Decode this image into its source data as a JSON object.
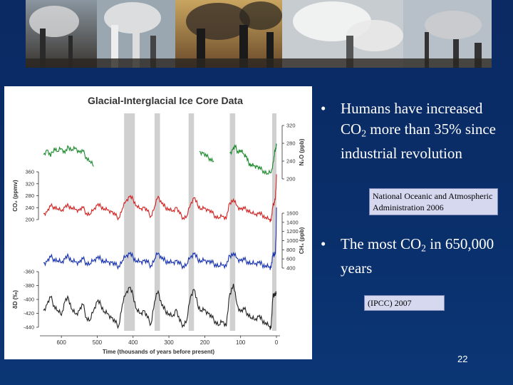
{
  "bullets": [
    {
      "parts": [
        "Humans have increased CO",
        "2",
        " more than 35% since industrial revolution"
      ]
    },
    {
      "parts": [
        "The most CO",
        "2",
        " in 650,000 years"
      ]
    }
  ],
  "citations": [
    "National Oceanic and Atmospheric Administration 2006",
    "(IPCC) 2007"
  ],
  "slide_number": "22",
  "banner": {
    "description_icon": "industrial-smokestacks-photo-strip"
  },
  "chart_data": {
    "type": "line",
    "title": "Glacial-Interglacial Ice Core Data",
    "xlabel": "Time (thousands of years before present)",
    "xlim": [
      650,
      0
    ],
    "x_ticks": [
      "600",
      "500",
      "400",
      "300",
      "200",
      "100",
      "0"
    ],
    "interglacial_bands_kyr": [
      [
        425,
        395
      ],
      [
        340,
        325
      ],
      [
        245,
        230
      ],
      [
        130,
        115
      ],
      [
        12,
        0
      ]
    ],
    "colors": {
      "n2o": "#1a8a2a",
      "co2": "#d42020",
      "ch4": "#1530b0",
      "dD": "#222222",
      "band": "#c8c8c8"
    },
    "series": [
      {
        "key": "n2o",
        "ylabel": "N₂O (ppb)",
        "axis": "right",
        "ylim": [
          200,
          320
        ],
        "ticks": [
          "320",
          "280",
          "240",
          "200"
        ],
        "segments": [
          [
            [
              650,
              255
            ],
            [
              640,
              265
            ],
            [
              630,
              250
            ],
            [
              620,
              270
            ],
            [
              610,
              262
            ],
            [
              600,
              268
            ],
            [
              590,
              258
            ],
            [
              580,
              272
            ],
            [
              570,
              266
            ],
            [
              560,
              270
            ],
            [
              550,
              260
            ],
            [
              540,
              262
            ],
            [
              530,
              248
            ],
            [
              520,
              240
            ],
            [
              510,
              228
            ]
          ],
          [
            [
              215,
              262
            ],
            [
              205,
              258
            ],
            [
              195,
              250
            ],
            [
              185,
              246
            ],
            [
              175,
              240
            ]
          ],
          [
            [
              130,
              258
            ],
            [
              122,
              266
            ],
            [
              115,
              272
            ],
            [
              108,
              262
            ],
            [
              100,
              264
            ],
            [
              92,
              256
            ],
            [
              85,
              250
            ],
            [
              78,
              236
            ],
            [
              70,
              232
            ],
            [
              62,
              230
            ],
            [
              55,
              228
            ],
            [
              45,
              222
            ],
            [
              35,
              218
            ],
            [
              25,
              212
            ],
            [
              15,
              214
            ],
            [
              8,
              240
            ],
            [
              4,
              265
            ],
            [
              1,
              272
            ],
            [
              0,
              278
            ]
          ]
        ]
      },
      {
        "key": "co2",
        "ylabel": "CO₂ (ppmv)",
        "axis": "left",
        "ylim": [
          180,
          380
        ],
        "ticks": [
          "360",
          "320",
          "280",
          "240",
          "200"
        ],
        "values": [
          [
            650,
            212
          ],
          [
            640,
            220
          ],
          [
            630,
            242
          ],
          [
            620,
            240
          ],
          [
            610,
            232
          ],
          [
            600,
            222
          ],
          [
            590,
            238
          ],
          [
            580,
            244
          ],
          [
            570,
            236
          ],
          [
            560,
            230
          ],
          [
            550,
            226
          ],
          [
            540,
            236
          ],
          [
            530,
            214
          ],
          [
            520,
            210
          ],
          [
            510,
            228
          ],
          [
            500,
            246
          ],
          [
            490,
            242
          ],
          [
            480,
            232
          ],
          [
            470,
            228
          ],
          [
            460,
            220
          ],
          [
            450,
            206
          ],
          [
            440,
            195
          ],
          [
            430,
            232
          ],
          [
            420,
            262
          ],
          [
            410,
            280
          ],
          [
            400,
            270
          ],
          [
            390,
            244
          ],
          [
            380,
            232
          ],
          [
            370,
            238
          ],
          [
            360,
            222
          ],
          [
            350,
            202
          ],
          [
            340,
            240
          ],
          [
            330,
            282
          ],
          [
            320,
            252
          ],
          [
            310,
            238
          ],
          [
            300,
            232
          ],
          [
            290,
            222
          ],
          [
            280,
            238
          ],
          [
            270,
            212
          ],
          [
            260,
            196
          ],
          [
            250,
            202
          ],
          [
            240,
            248
          ],
          [
            230,
            276
          ],
          [
            220,
            248
          ],
          [
            210,
            232
          ],
          [
            200,
            236
          ],
          [
            190,
            226
          ],
          [
            180,
            216
          ],
          [
            170,
            202
          ],
          [
            160,
            196
          ],
          [
            150,
            202
          ],
          [
            140,
            192
          ],
          [
            130,
            256
          ],
          [
            120,
            270
          ],
          [
            110,
            244
          ],
          [
            100,
            230
          ],
          [
            90,
            232
          ],
          [
            80,
            228
          ],
          [
            70,
            216
          ],
          [
            60,
            208
          ],
          [
            50,
            212
          ],
          [
            40,
            208
          ],
          [
            30,
            198
          ],
          [
            20,
            190
          ],
          [
            15,
            186
          ],
          [
            10,
            240
          ],
          [
            6,
            260
          ],
          [
            3,
            275
          ],
          [
            1,
            320
          ],
          [
            0,
            370
          ]
        ]
      },
      {
        "key": "ch4",
        "ylabel": "CH₄ (ppb)",
        "axis": "right",
        "ylim": [
          350,
          1750
        ],
        "ticks": [
          "1600",
          "1400",
          "1200",
          "1000",
          "800",
          "600",
          "400"
        ],
        "values": [
          [
            650,
            470
          ],
          [
            640,
            500
          ],
          [
            630,
            600
          ],
          [
            620,
            560
          ],
          [
            610,
            520
          ],
          [
            600,
            470
          ],
          [
            590,
            560
          ],
          [
            580,
            620
          ],
          [
            570,
            520
          ],
          [
            560,
            500
          ],
          [
            550,
            480
          ],
          [
            540,
            560
          ],
          [
            530,
            470
          ],
          [
            520,
            450
          ],
          [
            510,
            520
          ],
          [
            500,
            580
          ],
          [
            490,
            560
          ],
          [
            480,
            510
          ],
          [
            470,
            500
          ],
          [
            460,
            480
          ],
          [
            450,
            420
          ],
          [
            440,
            400
          ],
          [
            430,
            520
          ],
          [
            420,
            620
          ],
          [
            410,
            680
          ],
          [
            400,
            600
          ],
          [
            390,
            520
          ],
          [
            380,
            500
          ],
          [
            370,
            520
          ],
          [
            360,
            480
          ],
          [
            350,
            410
          ],
          [
            340,
            560
          ],
          [
            330,
            700
          ],
          [
            320,
            560
          ],
          [
            310,
            520
          ],
          [
            300,
            500
          ],
          [
            290,
            480
          ],
          [
            280,
            520
          ],
          [
            270,
            440
          ],
          [
            260,
            400
          ],
          [
            250,
            440
          ],
          [
            240,
            600
          ],
          [
            230,
            680
          ],
          [
            220,
            560
          ],
          [
            210,
            520
          ],
          [
            200,
            540
          ],
          [
            190,
            500
          ],
          [
            180,
            470
          ],
          [
            170,
            440
          ],
          [
            160,
            400
          ],
          [
            150,
            420
          ],
          [
            140,
            390
          ],
          [
            130,
            640
          ],
          [
            120,
            700
          ],
          [
            110,
            580
          ],
          [
            100,
            520
          ],
          [
            90,
            540
          ],
          [
            80,
            500
          ],
          [
            70,
            460
          ],
          [
            60,
            440
          ],
          [
            50,
            470
          ],
          [
            40,
            430
          ],
          [
            30,
            410
          ],
          [
            20,
            380
          ],
          [
            15,
            370
          ],
          [
            10,
            640
          ],
          [
            6,
            680
          ],
          [
            3,
            700
          ],
          [
            1,
            1100
          ],
          [
            0,
            1750
          ]
        ]
      },
      {
        "key": "dD",
        "ylabel": "δD (‰)",
        "axis": "left",
        "ylim": [
          -450,
          -350
        ],
        "ticks": [
          "-360",
          "-380",
          "-400",
          "-420",
          "-440"
        ],
        "values": [
          [
            650,
            -420
          ],
          [
            640,
            -410
          ],
          [
            630,
            -398
          ],
          [
            620,
            -412
          ],
          [
            610,
            -420
          ],
          [
            600,
            -428
          ],
          [
            590,
            -405
          ],
          [
            580,
            -400
          ],
          [
            570,
            -418
          ],
          [
            560,
            -426
          ],
          [
            550,
            -420
          ],
          [
            540,
            -410
          ],
          [
            530,
            -432
          ],
          [
            520,
            -436
          ],
          [
            510,
            -420
          ],
          [
            500,
            -405
          ],
          [
            490,
            -410
          ],
          [
            480,
            -422
          ],
          [
            470,
            -425
          ],
          [
            460,
            -432
          ],
          [
            450,
            -440
          ],
          [
            440,
            -445
          ],
          [
            430,
            -410
          ],
          [
            420,
            -392
          ],
          [
            410,
            -382
          ],
          [
            400,
            -395
          ],
          [
            390,
            -418
          ],
          [
            380,
            -425
          ],
          [
            370,
            -420
          ],
          [
            360,
            -432
          ],
          [
            350,
            -442
          ],
          [
            340,
            -405
          ],
          [
            330,
            -388
          ],
          [
            320,
            -412
          ],
          [
            310,
            -420
          ],
          [
            300,
            -425
          ],
          [
            290,
            -430
          ],
          [
            280,
            -418
          ],
          [
            270,
            -438
          ],
          [
            260,
            -444
          ],
          [
            250,
            -436
          ],
          [
            240,
            -398
          ],
          [
            230,
            -385
          ],
          [
            220,
            -410
          ],
          [
            210,
            -420
          ],
          [
            200,
            -418
          ],
          [
            190,
            -425
          ],
          [
            180,
            -432
          ],
          [
            170,
            -438
          ],
          [
            160,
            -444
          ],
          [
            150,
            -438
          ],
          [
            140,
            -446
          ],
          [
            130,
            -392
          ],
          [
            120,
            -376
          ],
          [
            110,
            -410
          ],
          [
            100,
            -422
          ],
          [
            90,
            -418
          ],
          [
            80,
            -425
          ],
          [
            70,
            -432
          ],
          [
            60,
            -436
          ],
          [
            50,
            -430
          ],
          [
            40,
            -436
          ],
          [
            30,
            -440
          ],
          [
            20,
            -446
          ],
          [
            15,
            -448
          ],
          [
            10,
            -398
          ],
          [
            6,
            -392
          ],
          [
            3,
            -394
          ],
          [
            0,
            -392
          ]
        ]
      }
    ]
  }
}
